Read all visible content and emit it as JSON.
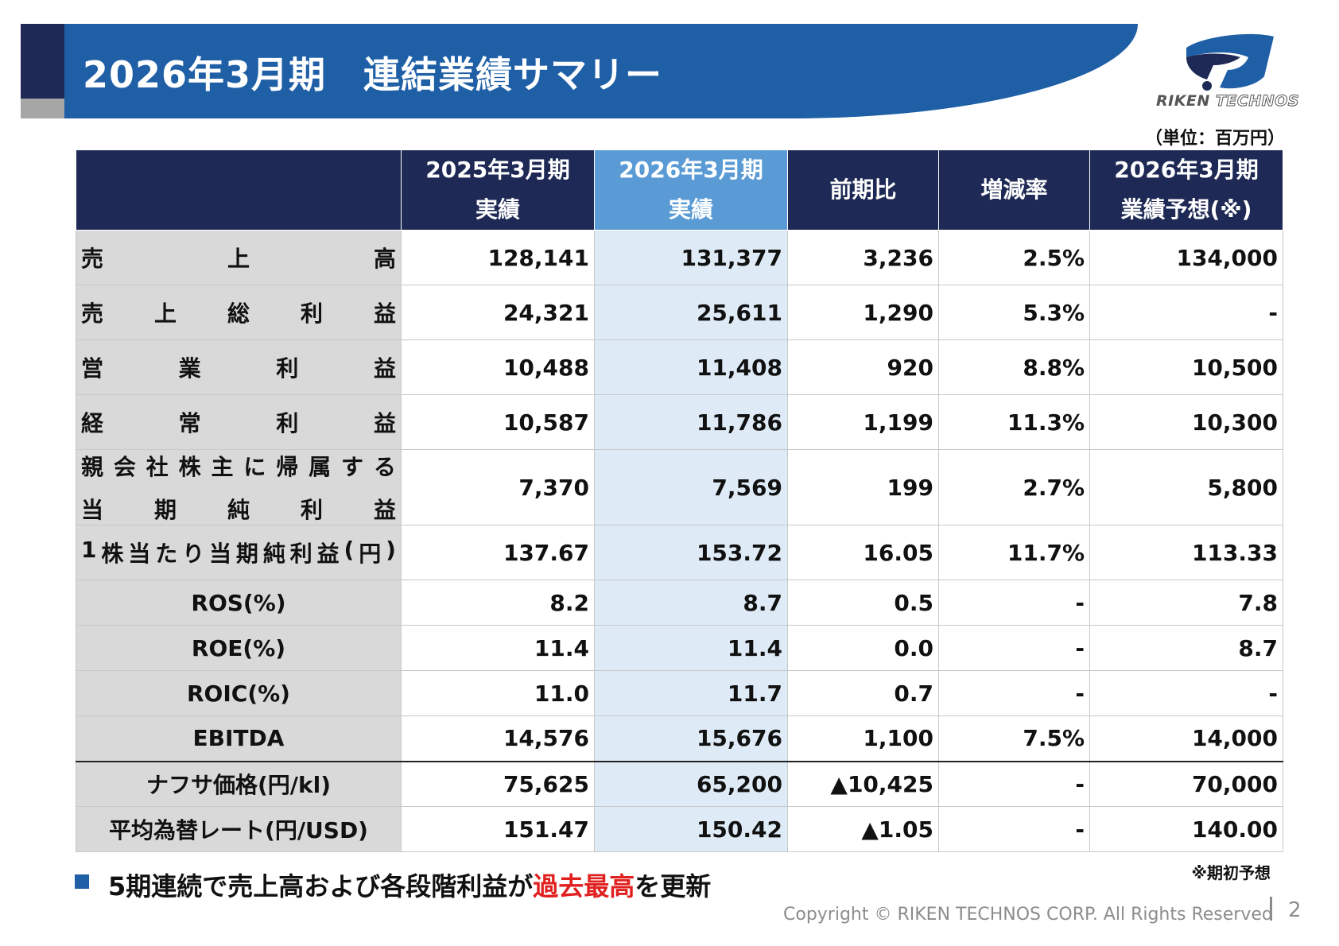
{
  "header": {
    "title": "2026年3月期　連結業績サマリー"
  },
  "logo": {
    "brand_word1": "RIKEN",
    "brand_word2": "TECHNOS"
  },
  "unit_label": "（単位：百万円）",
  "table": {
    "columns": [
      {
        "line1": "2025年3月期",
        "line2": "実績"
      },
      {
        "line1": "2026年3月期",
        "line2": "実績"
      },
      {
        "line1": "前期比",
        "line2": ""
      },
      {
        "line1": "増減率",
        "line2": ""
      },
      {
        "line1": "2026年3月期",
        "line2": "業績予想(※)"
      }
    ],
    "rows": [
      {
        "label": "売上高",
        "values": [
          "128,141",
          "131,377",
          "3,236",
          "2.5%",
          "134,000"
        ]
      },
      {
        "label": "売上総利益",
        "values": [
          "24,321",
          "25,611",
          "1,290",
          "5.3%",
          "-"
        ]
      },
      {
        "label": "営業利益",
        "values": [
          "10,488",
          "11,408",
          "920",
          "8.8%",
          "10,500"
        ]
      },
      {
        "label": "経常利益",
        "values": [
          "10,587",
          "11,786",
          "1,199",
          "11.3%",
          "10,300"
        ]
      },
      {
        "label": "親会社株主に帰属する",
        "label2": "当期純利益",
        "values": [
          "7,370",
          "7,569",
          "199",
          "2.7%",
          "5,800"
        ]
      },
      {
        "label": "1株当たり当期純利益(円)",
        "values": [
          "137.67",
          "153.72",
          "16.05",
          "11.7%",
          "113.33"
        ]
      },
      {
        "label": "ROS(%)",
        "values": [
          "8.2",
          "8.7",
          "0.5",
          "-",
          "7.8"
        ]
      },
      {
        "label": "ROE(%)",
        "values": [
          "11.4",
          "11.4",
          "0.0",
          "-",
          "8.7"
        ]
      },
      {
        "label": "ROIC(%)",
        "values": [
          "11.0",
          "11.7",
          "0.7",
          "-",
          "-"
        ]
      },
      {
        "label": "EBITDA",
        "values": [
          "14,576",
          "15,676",
          "1,100",
          "7.5%",
          "14,000"
        ]
      },
      {
        "label": "ナフサ価格(円/kl)",
        "values": [
          "75,625",
          "65,200",
          "▲10,425",
          "-",
          "70,000"
        ]
      },
      {
        "label": "平均為替レート(円/USD)",
        "values": [
          "151.47",
          "150.42",
          "▲1.05",
          "-",
          "140.00"
        ]
      }
    ]
  },
  "footnote": "※期初予想",
  "bullet": {
    "text_before": "5期連続で売上高および各段階利益が",
    "text_highlight": "過去最高",
    "text_after": "を更新"
  },
  "footer": {
    "copyright": "Copyright © RIKEN TECHNOS CORP. All Rights Reserved",
    "page_number": "2"
  },
  "colors": {
    "navy": "#1e2a55",
    "blue": "#1f5fa6",
    "highlight_col": "#deebf7",
    "highlight_header": "#5b9bd5",
    "red": "#e0201f"
  }
}
